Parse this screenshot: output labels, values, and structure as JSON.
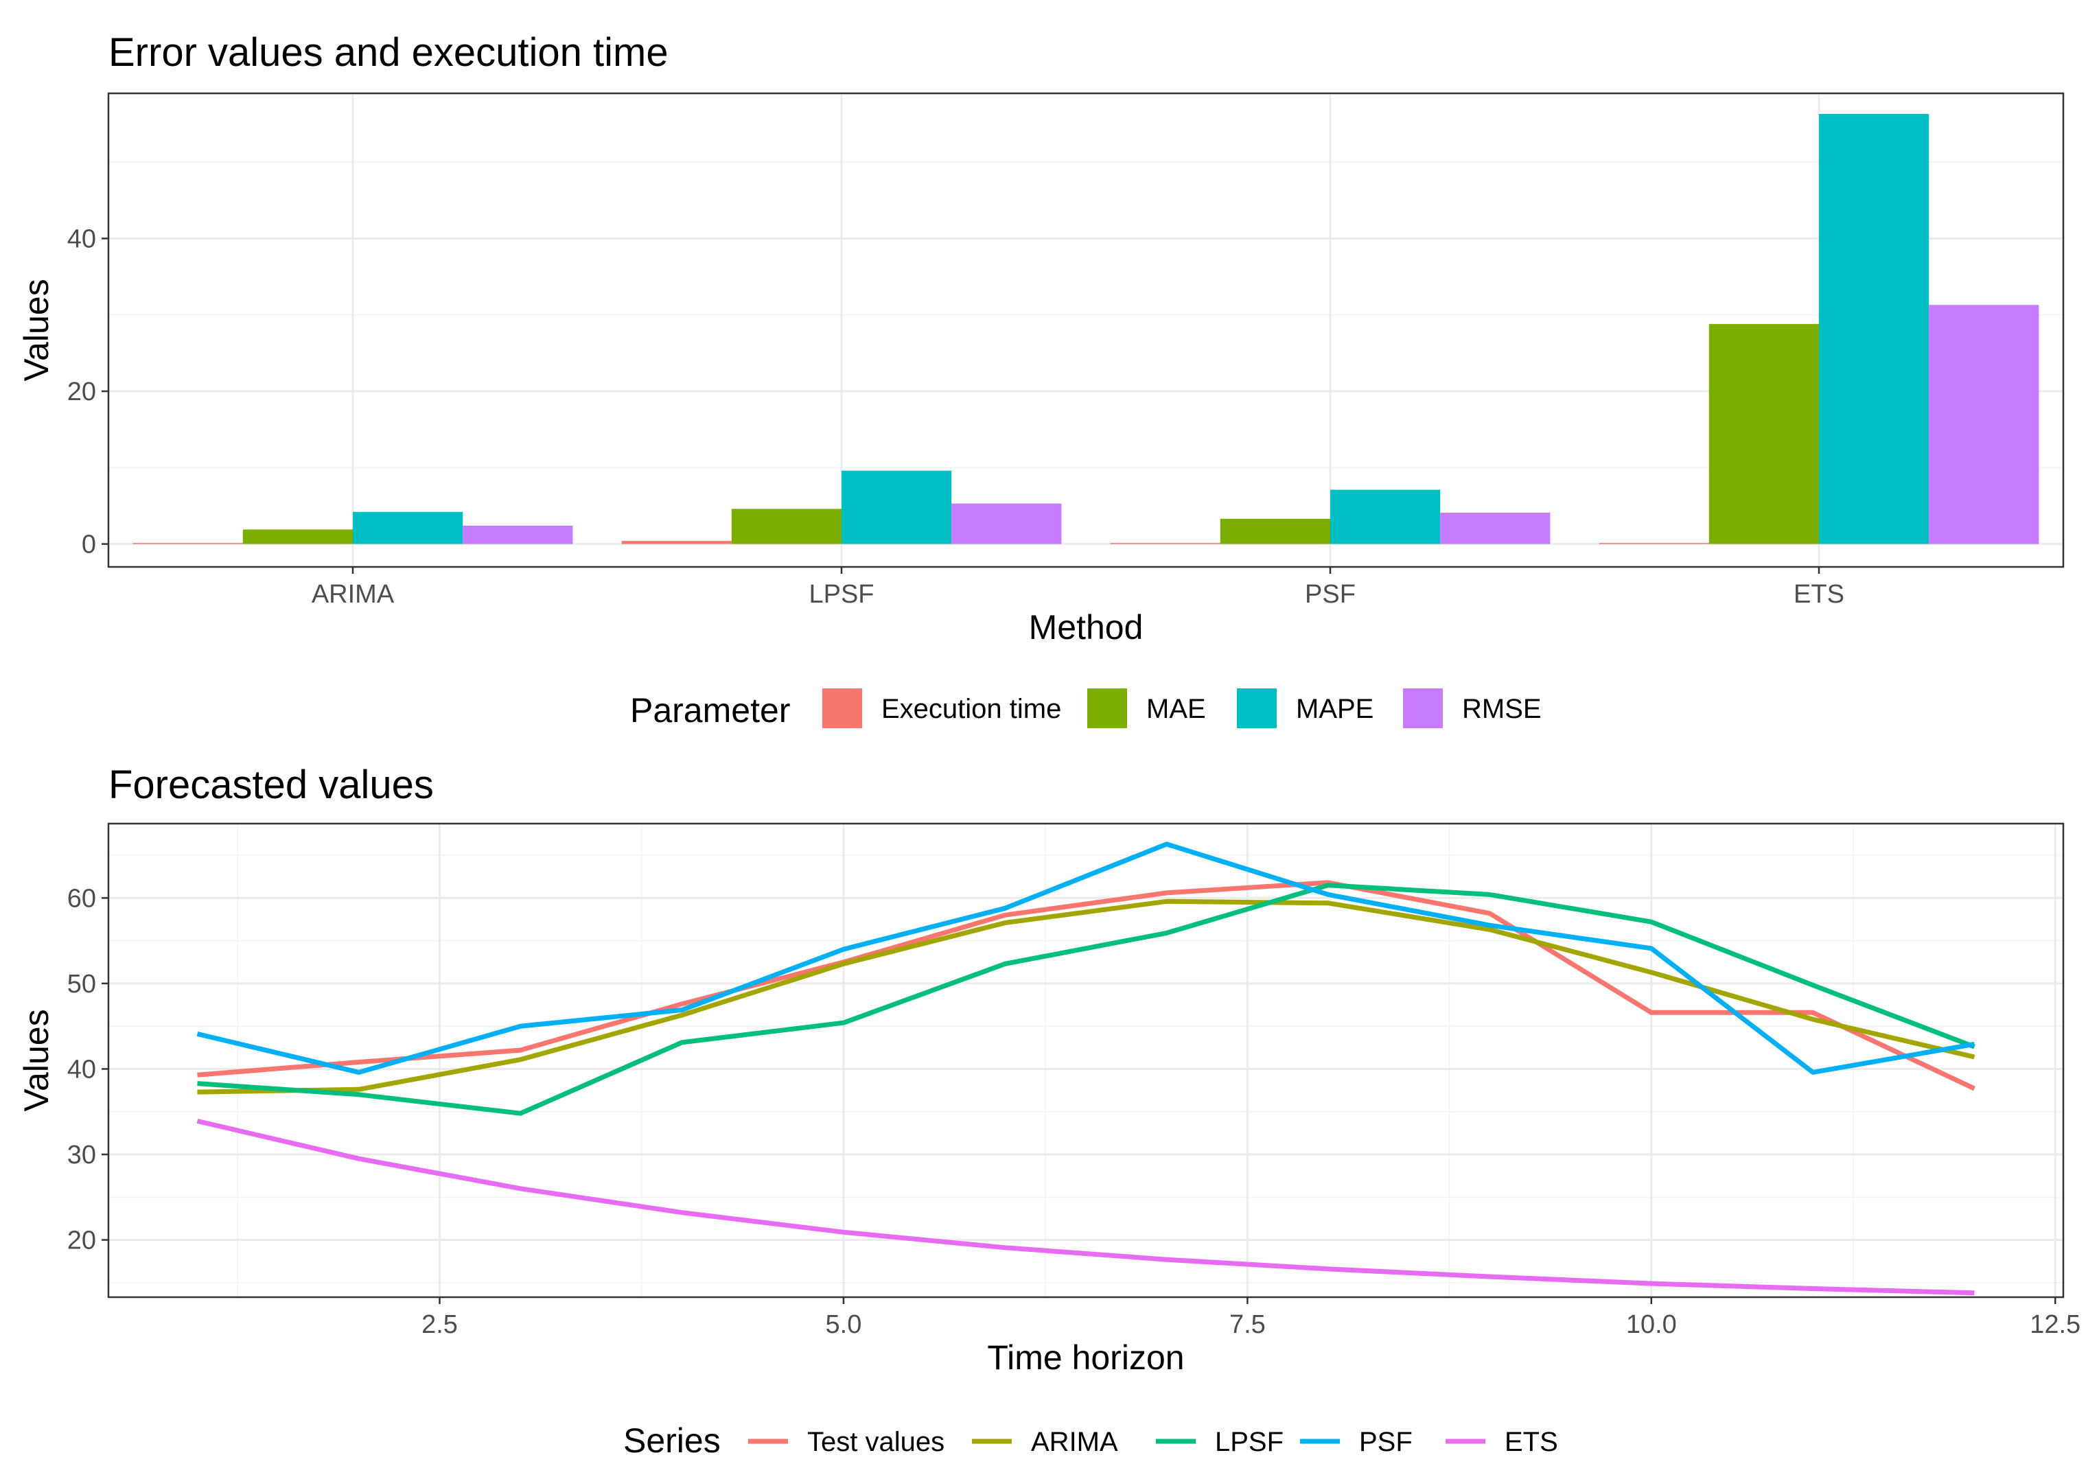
{
  "chart_data": [
    {
      "type": "bar",
      "title": "Error values and execution time",
      "xlabel": "Method",
      "ylabel": "Values",
      "categories": [
        "ARIMA",
        "LPSF",
        "PSF",
        "ETS"
      ],
      "ylim": [
        -3,
        59
      ],
      "yticks": [
        0,
        20,
        40
      ],
      "grid": true,
      "legend": {
        "title": "Parameter",
        "position": "bottom"
      },
      "series": [
        {
          "name": "Execution time",
          "color": "#F8766D",
          "values": [
            0.1,
            0.4,
            0.05,
            0.05
          ]
        },
        {
          "name": "MAE",
          "color": "#7CAE00",
          "values": [
            1.9,
            4.6,
            3.3,
            28.8
          ]
        },
        {
          "name": "MAPE",
          "color": "#00BFC4",
          "values": [
            4.2,
            9.6,
            7.1,
            56.3
          ]
        },
        {
          "name": "RMSE",
          "color": "#C77CFF",
          "values": [
            2.4,
            5.3,
            4.1,
            31.3
          ]
        }
      ]
    },
    {
      "type": "line",
      "title": "Forecasted values",
      "xlabel": "Time horizon",
      "ylabel": "Values",
      "xlim": [
        0.45,
        12.55
      ],
      "ylim": [
        13.3,
        68.7
      ],
      "xticks": [
        2.5,
        5.0,
        7.5,
        10.0,
        12.5
      ],
      "xtick_labels": [
        "2.5",
        "5.0",
        "7.5",
        "10.0",
        "12.5"
      ],
      "yticks": [
        20,
        30,
        40,
        50,
        60
      ],
      "grid": true,
      "legend": {
        "title": "Series",
        "position": "bottom"
      },
      "x": [
        1,
        2,
        3,
        4,
        5,
        6,
        7,
        8,
        9,
        10,
        11,
        12
      ],
      "series": [
        {
          "name": "Test values",
          "color": "#F8766D",
          "values": [
            39.3,
            40.8,
            42.2,
            47.6,
            52.5,
            58.0,
            60.6,
            61.8,
            58.2,
            46.6,
            46.6,
            37.7
          ]
        },
        {
          "name": "ARIMA",
          "color": "#A3A500",
          "values": [
            37.3,
            37.6,
            41.1,
            46.3,
            52.3,
            57.1,
            59.6,
            59.4,
            56.3,
            51.3,
            45.8,
            41.4
          ]
        },
        {
          "name": "LPSF",
          "color": "#00BF7D",
          "values": [
            38.3,
            37.0,
            34.8,
            43.1,
            45.4,
            52.3,
            55.9,
            61.5,
            60.4,
            57.2,
            49.8,
            42.6
          ]
        },
        {
          "name": "PSF",
          "color": "#00B0F6",
          "values": [
            44.1,
            39.6,
            45.0,
            46.9,
            54.0,
            58.8,
            66.3,
            60.4,
            56.8,
            54.1,
            39.6,
            42.9
          ]
        },
        {
          "name": "ETS",
          "color": "#E76BF3",
          "values": [
            33.9,
            29.5,
            26.0,
            23.2,
            20.9,
            19.1,
            17.7,
            16.6,
            15.7,
            14.9,
            14.3,
            13.8
          ]
        }
      ]
    }
  ]
}
